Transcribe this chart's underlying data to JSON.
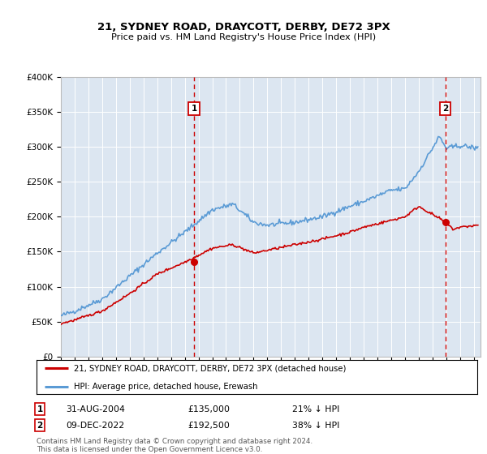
{
  "title": "21, SYDNEY ROAD, DRAYCOTT, DERBY, DE72 3PX",
  "subtitle": "Price paid vs. HM Land Registry's House Price Index (HPI)",
  "legend_line1": "21, SYDNEY ROAD, DRAYCOTT, DERBY, DE72 3PX (detached house)",
  "legend_line2": "HPI: Average price, detached house, Erewash",
  "footnote1": "Contains HM Land Registry data © Crown copyright and database right 2024.",
  "footnote2": "This data is licensed under the Open Government Licence v3.0.",
  "sale1_date": "31-AUG-2004",
  "sale1_price": 135000,
  "sale1_note": "21% ↓ HPI",
  "sale2_date": "09-DEC-2022",
  "sale2_price": 192500,
  "sale2_note": "38% ↓ HPI",
  "sale1_x": 2004.67,
  "sale2_x": 2022.94,
  "ylim": [
    0,
    400000
  ],
  "xlim_start": 1995,
  "xlim_end": 2025.5,
  "red_color": "#cc0000",
  "blue_color": "#5b9bd5",
  "plot_bg": "#dce6f1"
}
